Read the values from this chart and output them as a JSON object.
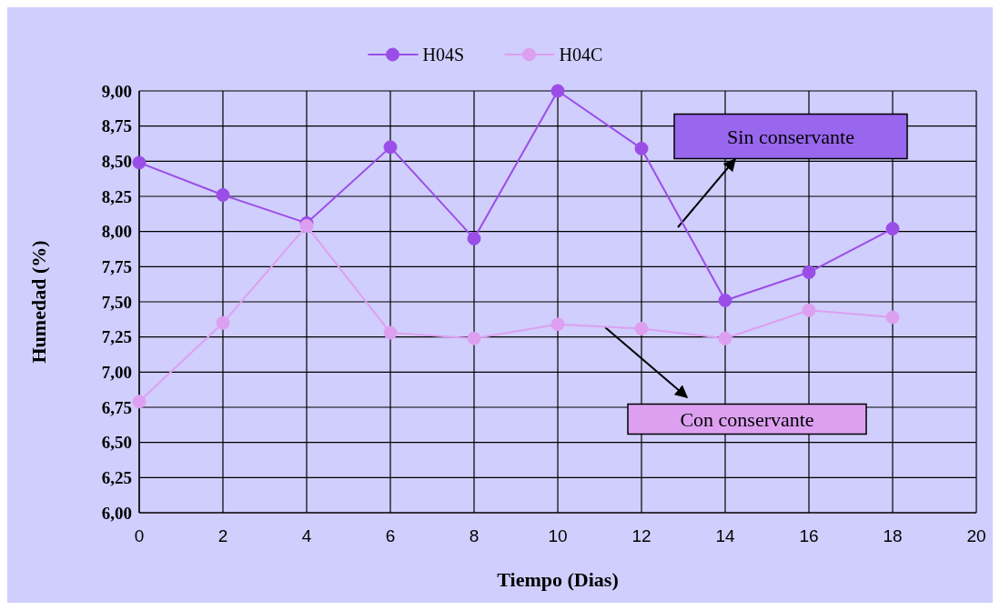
{
  "chart_data": {
    "type": "line",
    "xlabel": "Tiempo (Dias)",
    "ylabel": "Humedad (%)",
    "x": [
      0,
      2,
      4,
      6,
      8,
      10,
      12,
      14,
      16,
      18
    ],
    "series": [
      {
        "name": "H04S",
        "color": "#9b4de8",
        "values": [
          8.49,
          8.26,
          8.06,
          8.6,
          7.95,
          9.0,
          8.59,
          7.51,
          7.71,
          8.02
        ]
      },
      {
        "name": "H04C",
        "color": "#dda0f0",
        "values": [
          6.79,
          7.35,
          8.04,
          7.28,
          7.24,
          7.34,
          7.31,
          7.24,
          7.44,
          7.39
        ]
      }
    ],
    "xlim": [
      0,
      20
    ],
    "xticks": [
      0,
      2,
      4,
      6,
      8,
      10,
      12,
      14,
      16,
      18,
      20
    ],
    "ylim": [
      6,
      9
    ],
    "yticks": [
      {
        "value": 6,
        "label": "6,00"
      },
      {
        "value": 6.25,
        "label": "6,25"
      },
      {
        "value": 6.5,
        "label": "6,50"
      },
      {
        "value": 6.75,
        "label": "6,75"
      },
      {
        "value": 7,
        "label": "7,00"
      },
      {
        "value": 7.25,
        "label": "7,25"
      },
      {
        "value": 7.5,
        "label": "7,50"
      },
      {
        "value": 7.75,
        "label": "7,75"
      },
      {
        "value": 8,
        "label": "8,00"
      },
      {
        "value": 8.25,
        "label": "8,25"
      },
      {
        "value": 8.5,
        "label": "8,50"
      },
      {
        "value": 8.75,
        "label": "8,75"
      },
      {
        "value": 9,
        "label": "9,00"
      }
    ],
    "grid": true,
    "legend": "top",
    "marker": "circle",
    "line_style": "solid",
    "annotations": [
      "Sin conservante",
      "Con conservante"
    ]
  }
}
